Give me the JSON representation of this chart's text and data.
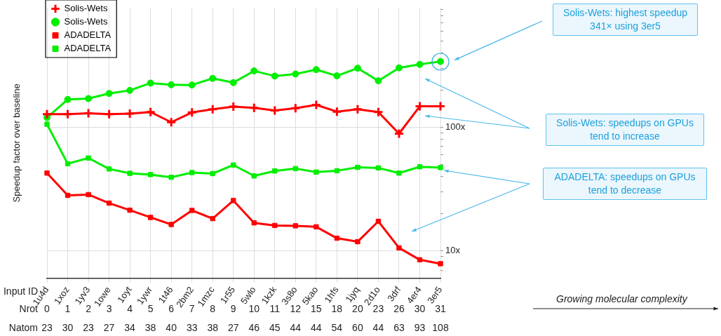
{
  "chart_data": {
    "type": "line",
    "ylabel": "Speedup factor over baseline",
    "categories": [
      "1u4d",
      "1xoz",
      "1yv3",
      "1owe",
      "1oyt",
      "1ywr",
      "1t46",
      "2bm2",
      "1mzc",
      "1r55",
      "5wlo",
      "1kzk",
      "3s8o",
      "5kao",
      "1hfs",
      "1jyq",
      "2d1o",
      "3drf",
      "4er4",
      "3er5"
    ],
    "series": [
      {
        "name": "Solis-Wets",
        "color": "#ff0000",
        "marker": "cross",
        "values": [
          128,
          128,
          130,
          128,
          129,
          133,
          110,
          132,
          140,
          147,
          144,
          137,
          143,
          152,
          134,
          140,
          133,
          89,
          148,
          148
        ]
      },
      {
        "name": "Solis-Wets",
        "color": "#00ee00",
        "marker": "circle",
        "values": [
          120,
          168,
          171,
          188,
          199,
          228,
          221,
          220,
          249,
          230,
          286,
          260,
          270,
          293,
          261,
          301,
          238,
          303,
          323,
          341
        ]
      },
      {
        "name": "ADADELTA",
        "color": "#ff0000",
        "marker": "square",
        "values": [
          42.7,
          28.2,
          28.6,
          24.4,
          21.4,
          18.7,
          16.4,
          21.3,
          18.3,
          25.6,
          16.9,
          16.1,
          16.0,
          15.7,
          12.7,
          11.9,
          17.4,
          10.6,
          8.5,
          7.9
        ]
      },
      {
        "name": "ADADELTA",
        "color": "#00ee00",
        "marker": "square",
        "values": [
          106,
          50.8,
          56.5,
          46.1,
          42.5,
          41.5,
          39.5,
          43.1,
          42.3,
          49.6,
          40.5,
          44.4,
          46.4,
          43.5,
          44.6,
          47.5,
          47.0,
          42.7,
          48.0,
          47.3
        ]
      }
    ],
    "log": "y",
    "ylim": [
      6,
      930
    ],
    "yticks": [
      {
        "value": 7,
        "label": null
      },
      {
        "value": 8,
        "label": null
      },
      {
        "value": 9,
        "label": null
      },
      {
        "value": 10,
        "label": "10x"
      },
      {
        "value": 20,
        "label": null
      },
      {
        "value": 30,
        "label": null
      },
      {
        "value": 40,
        "label": null
      },
      {
        "value": 50,
        "label": null
      },
      {
        "value": 60,
        "label": null
      },
      {
        "value": 70,
        "label": null
      },
      {
        "value": 80,
        "label": null
      },
      {
        "value": 90,
        "label": null
      },
      {
        "value": 100,
        "label": "100x"
      },
      {
        "value": 200,
        "label": null
      },
      {
        "value": 300,
        "label": null
      },
      {
        "value": 400,
        "label": null
      },
      {
        "value": 500,
        "label": null
      },
      {
        "value": 600,
        "label": null
      },
      {
        "value": 700,
        "label": null
      },
      {
        "value": 800,
        "label": null
      },
      {
        "value": 900,
        "label": null
      }
    ],
    "grid": true,
    "legend": "top left",
    "line_style": "solid",
    "annotations": [
      "Solis-Wets: highest speedup 341× using 3er5",
      "Solis-Wets: speedups on GPUs tend to increase",
      "ADADELTA: speedups on GPUs tend to decrease",
      "Growing molecular complexity",
      "Input ID",
      "Nrot",
      "Natom",
      "0 1 2 3 4 5 6 7 8 9 10 11 12 15 18 20 23 26 30 31",
      "23 30 23 27 34 38 40 33 38 27 46 45 44 44 54 60 44 63 93 108"
    ]
  }
}
